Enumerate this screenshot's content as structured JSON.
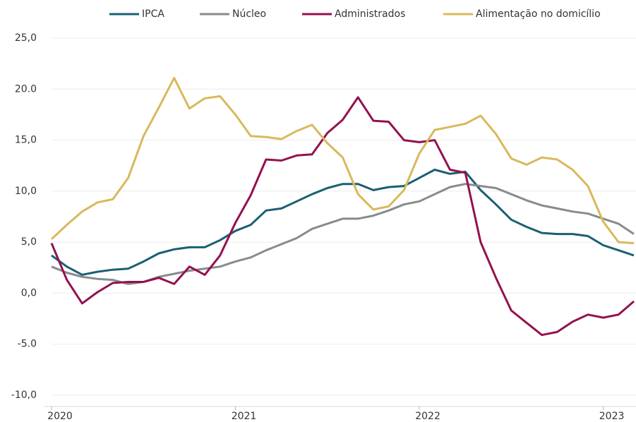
{
  "chart_data": {
    "type": "line",
    "categories": [
      "2020",
      null,
      null,
      null,
      null,
      null,
      null,
      null,
      null,
      null,
      null,
      null,
      "2021",
      null,
      null,
      null,
      null,
      null,
      null,
      null,
      null,
      null,
      null,
      null,
      "2022",
      null,
      null,
      null,
      null,
      null,
      null,
      null,
      null,
      null,
      null,
      null,
      "2023",
      null,
      null
    ],
    "series": [
      {
        "name": "IPCA",
        "color": "#1b5f72",
        "values": [
          3.7,
          2.6,
          1.8,
          2.1,
          2.3,
          2.4,
          3.1,
          3.9,
          4.3,
          4.5,
          4.5,
          5.2,
          6.1,
          6.7,
          8.1,
          8.3,
          9.0,
          9.7,
          10.3,
          10.7,
          10.7,
          10.1,
          10.4,
          10.5,
          11.3,
          12.1,
          11.7,
          11.9,
          10.1,
          8.7,
          7.2,
          6.5,
          5.9,
          5.8,
          5.8,
          5.6,
          4.7,
          4.2,
          3.7
        ]
      },
      {
        "name": "Núcleo",
        "color": "#868b8b",
        "values": [
          2.6,
          2.0,
          1.6,
          1.4,
          1.3,
          0.9,
          1.1,
          1.6,
          1.9,
          2.2,
          2.4,
          2.6,
          3.1,
          3.5,
          4.2,
          4.8,
          5.4,
          6.3,
          6.8,
          7.3,
          7.3,
          7.6,
          8.1,
          8.7,
          9.0,
          9.7,
          10.4,
          10.7,
          10.5,
          10.3,
          9.7,
          9.1,
          8.6,
          8.3,
          8.0,
          7.8,
          7.3,
          6.8,
          5.8
        ]
      },
      {
        "name": "Administrados",
        "color": "#93114f",
        "values": [
          4.9,
          1.3,
          -1.0,
          0.1,
          1.0,
          1.1,
          1.1,
          1.5,
          0.9,
          2.6,
          1.8,
          3.7,
          6.9,
          9.6,
          13.1,
          13.0,
          13.5,
          13.6,
          15.7,
          17.0,
          19.2,
          16.9,
          16.8,
          15.0,
          14.8,
          15.0,
          12.1,
          11.8,
          5.0,
          1.5,
          -1.7,
          -2.9,
          -4.1,
          -3.8,
          -2.8,
          -2.1,
          -2.4,
          -2.1,
          -0.8
        ]
      },
      {
        "name": "Alimentação no domicílio",
        "color": "#d8b95b",
        "values": [
          5.3,
          6.7,
          8.0,
          8.9,
          9.2,
          11.3,
          15.4,
          18.2,
          21.1,
          18.1,
          19.1,
          19.3,
          17.5,
          15.4,
          15.3,
          15.1,
          15.9,
          16.5,
          14.7,
          13.3,
          9.7,
          8.2,
          8.5,
          10.1,
          13.7,
          16.0,
          16.3,
          16.6,
          17.4,
          15.6,
          13.2,
          12.6,
          13.3,
          13.1,
          12.1,
          10.5,
          7.0,
          5.0,
          4.9
        ]
      }
    ],
    "ylim": [
      -10,
      25
    ],
    "yticks": [
      {
        "value": -10,
        "label": "-10,0"
      },
      {
        "value": -5,
        "label": "-5.0"
      },
      {
        "value": 0,
        "label": "0,0"
      },
      {
        "value": 5,
        "label": "5,0"
      },
      {
        "value": 10,
        "label": "10,0"
      },
      {
        "value": 15,
        "label": "15,0"
      },
      {
        "value": 20,
        "label": "20.0"
      },
      {
        "value": 25,
        "label": "25,0"
      }
    ],
    "grid": true
  }
}
